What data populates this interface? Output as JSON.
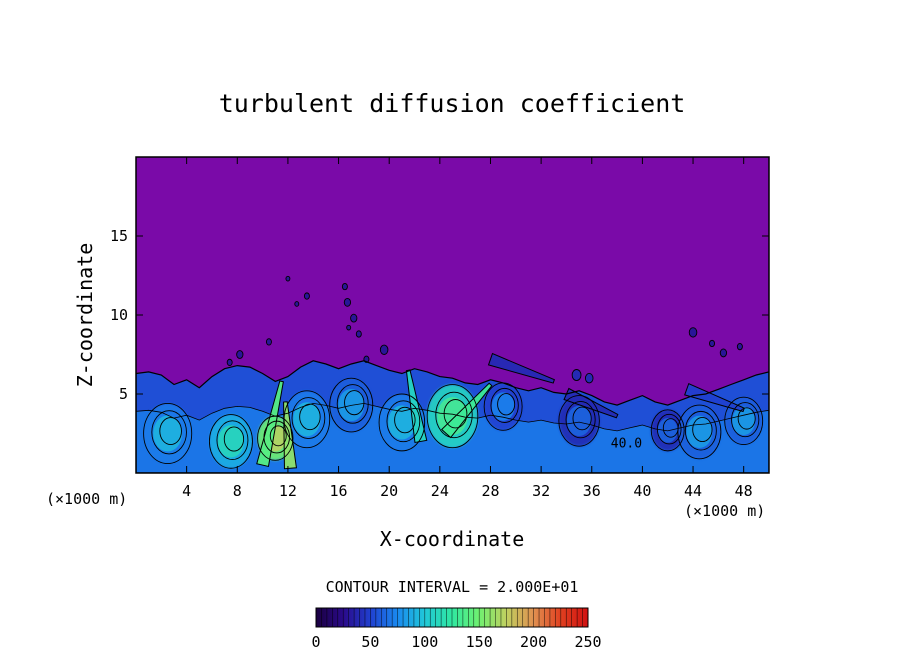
{
  "chart_data": {
    "type": "heatmap",
    "title": "turbulent diffusion coefficient",
    "xlabel": "X-coordinate",
    "ylabel": "Z-coordinate",
    "x_unit_left": "(×1000 m)",
    "x_unit_right": "(×1000 m)",
    "xlim": [
      0,
      50
    ],
    "ylim": [
      0,
      20
    ],
    "x_ticks": [
      4,
      8,
      12,
      16,
      20,
      24,
      28,
      32,
      36,
      40,
      44,
      48
    ],
    "x_tick_labels": [
      "4",
      "8",
      "12",
      "16",
      "20",
      "24",
      "28",
      "32",
      "36",
      "40",
      "44",
      "48"
    ],
    "y_ticks": [
      5,
      10,
      15
    ],
    "y_tick_labels": [
      "5",
      "10",
      "15"
    ],
    "contour_interval_text": "CONTOUR INTERVAL = 2.000E+01",
    "contour_interval": 20,
    "contour_label": {
      "text": "40.0",
      "x": 37.5,
      "z": 1.6
    },
    "colorbar": {
      "min": 0,
      "max": 250,
      "ticks": [
        0,
        50,
        100,
        150,
        200,
        250
      ],
      "tick_labels": [
        "0",
        "50",
        "100",
        "150",
        "200",
        "250"
      ],
      "colors": [
        "#1a0040",
        "#2a0a8a",
        "#2040d0",
        "#1a8af0",
        "#20c8d8",
        "#30e8a0",
        "#70f070",
        "#c0d060",
        "#e09050",
        "#e04020",
        "#d01010"
      ]
    },
    "background_color": "#7a0aa8",
    "boundary_layer_top": [
      [
        0,
        6.3
      ],
      [
        1,
        6.4
      ],
      [
        2,
        6.2
      ],
      [
        3,
        5.6
      ],
      [
        4,
        5.9
      ],
      [
        5,
        5.4
      ],
      [
        6,
        6.1
      ],
      [
        7,
        6.6
      ],
      [
        8,
        6.8
      ],
      [
        9,
        6.7
      ],
      [
        10,
        6.3
      ],
      [
        11,
        5.8
      ],
      [
        12,
        6.1
      ],
      [
        13,
        6.7
      ],
      [
        14,
        7.1
      ],
      [
        15,
        6.9
      ],
      [
        16,
        6.6
      ],
      [
        17,
        6.9
      ],
      [
        18,
        7.1
      ],
      [
        19,
        6.8
      ],
      [
        20,
        6.5
      ],
      [
        21,
        6.3
      ],
      [
        22,
        6.6
      ],
      [
        23,
        6.4
      ],
      [
        24,
        6.1
      ],
      [
        25,
        6.0
      ],
      [
        26,
        5.7
      ],
      [
        27,
        5.6
      ],
      [
        28,
        5.9
      ],
      [
        29,
        5.7
      ],
      [
        30,
        5.4
      ],
      [
        31,
        5.2
      ],
      [
        32,
        5.4
      ],
      [
        33,
        5.1
      ],
      [
        34,
        5.0
      ],
      [
        35,
        5.2
      ],
      [
        36,
        4.9
      ],
      [
        37,
        4.5
      ],
      [
        38,
        4.3
      ],
      [
        39,
        4.6
      ],
      [
        40,
        4.9
      ],
      [
        41,
        4.5
      ],
      [
        42,
        4.3
      ],
      [
        43,
        4.6
      ],
      [
        44,
        4.9
      ],
      [
        45,
        5.0
      ],
      [
        46,
        5.3
      ],
      [
        47,
        5.6
      ],
      [
        48,
        5.9
      ],
      [
        49,
        6.2
      ],
      [
        50,
        6.4
      ]
    ],
    "eddies": [
      {
        "x": 2.5,
        "z": 2.5,
        "r": 1.9,
        "level": 70
      },
      {
        "x": 7.5,
        "z": 2.0,
        "r": 1.7,
        "level": 90
      },
      {
        "x": 11.0,
        "z": 2.2,
        "r": 1.4,
        "level": 150
      },
      {
        "x": 13.5,
        "z": 3.4,
        "r": 1.8,
        "level": 70
      },
      {
        "x": 17.0,
        "z": 4.3,
        "r": 1.7,
        "level": 60
      },
      {
        "x": 21.0,
        "z": 3.2,
        "r": 1.8,
        "level": 70
      },
      {
        "x": 25.0,
        "z": 3.6,
        "r": 2.0,
        "level": 110
      },
      {
        "x": 29.0,
        "z": 4.2,
        "r": 1.5,
        "level": 50
      },
      {
        "x": 35.0,
        "z": 3.3,
        "r": 1.6,
        "level": 40
      },
      {
        "x": 42.0,
        "z": 2.7,
        "r": 1.3,
        "level": 40
      },
      {
        "x": 44.5,
        "z": 2.6,
        "r": 1.7,
        "level": 60
      },
      {
        "x": 48.0,
        "z": 3.3,
        "r": 1.5,
        "level": 60
      }
    ],
    "plumes": [
      {
        "x1": 10.0,
        "z1": 0.5,
        "x2": 11.5,
        "z2": 5.8,
        "level": 140
      },
      {
        "x1": 12.2,
        "z1": 0.3,
        "x2": 11.8,
        "z2": 4.5,
        "level": 160
      },
      {
        "x1": 22.5,
        "z1": 2.0,
        "x2": 21.5,
        "z2": 6.5,
        "level": 110
      },
      {
        "x1": 24.5,
        "z1": 2.5,
        "x2": 28.0,
        "z2": 5.6,
        "level": 130
      },
      {
        "x1": 28.0,
        "z1": 7.2,
        "x2": 33.0,
        "z2": 5.8,
        "level": 40
      },
      {
        "x1": 34.0,
        "z1": 5.0,
        "x2": 38.0,
        "z2": 3.6,
        "level": 40
      },
      {
        "x1": 43.5,
        "z1": 5.3,
        "x2": 48.0,
        "z2": 4.0,
        "level": 50
      }
    ],
    "blobs": [
      {
        "x": 12.0,
        "z": 12.3,
        "r": 0.15,
        "level": 30
      },
      {
        "x": 13.5,
        "z": 11.2,
        "r": 0.2,
        "level": 30
      },
      {
        "x": 12.7,
        "z": 10.7,
        "r": 0.15,
        "level": 30
      },
      {
        "x": 16.5,
        "z": 11.8,
        "r": 0.2,
        "level": 30
      },
      {
        "x": 16.7,
        "z": 10.8,
        "r": 0.25,
        "level": 30
      },
      {
        "x": 17.2,
        "z": 9.8,
        "r": 0.25,
        "level": 30
      },
      {
        "x": 17.6,
        "z": 8.8,
        "r": 0.2,
        "level": 30
      },
      {
        "x": 16.8,
        "z": 9.2,
        "r": 0.15,
        "level": 30
      },
      {
        "x": 19.6,
        "z": 7.8,
        "r": 0.3,
        "level": 30
      },
      {
        "x": 18.2,
        "z": 7.2,
        "r": 0.2,
        "level": 30
      },
      {
        "x": 10.5,
        "z": 8.3,
        "r": 0.2,
        "level": 30
      },
      {
        "x": 8.2,
        "z": 7.5,
        "r": 0.25,
        "level": 30
      },
      {
        "x": 7.4,
        "z": 7.0,
        "r": 0.2,
        "level": 30
      },
      {
        "x": 44.0,
        "z": 8.9,
        "r": 0.3,
        "level": 30
      },
      {
        "x": 45.5,
        "z": 8.2,
        "r": 0.2,
        "level": 30
      },
      {
        "x": 46.4,
        "z": 7.6,
        "r": 0.25,
        "level": 30
      },
      {
        "x": 47.7,
        "z": 8.0,
        "r": 0.2,
        "level": 30
      },
      {
        "x": 34.8,
        "z": 6.2,
        "r": 0.35,
        "level": 40
      },
      {
        "x": 35.8,
        "z": 6.0,
        "r": 0.3,
        "level": 40
      }
    ]
  }
}
